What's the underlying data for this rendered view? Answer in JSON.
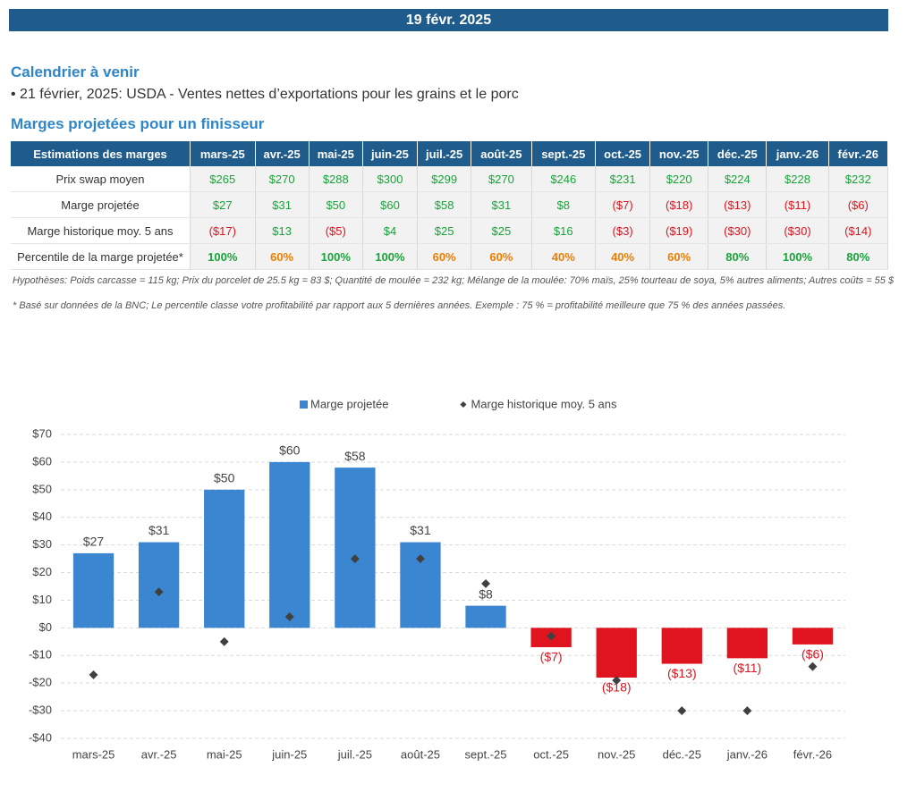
{
  "header": {
    "date": "19 févr. 2025"
  },
  "calendar": {
    "title": "Calendrier à venir",
    "items": [
      "• 21 février, 2025: USDA - Ventes nettes d’exportations pour les grains et le porc"
    ]
  },
  "margins": {
    "title": "Marges projetées pour un finisseur",
    "table": {
      "header": [
        "Estimations des marges",
        "mars-25",
        "avr.-25",
        "mai-25",
        "juin-25",
        "juil.-25",
        "août-25",
        "sept.-25",
        "oct.-25",
        "nov.-25",
        "déc.-25",
        "janv.-26",
        "févr.-26"
      ],
      "rows": [
        {
          "label": "Prix swap moyen",
          "cells": [
            "$265",
            "$270",
            "$288",
            "$300",
            "$299",
            "$270",
            "$246",
            "$231",
            "$220",
            "$224",
            "$228",
            "$232"
          ],
          "colors": [
            "#1aa33a",
            "#1aa33a",
            "#1aa33a",
            "#1aa33a",
            "#1aa33a",
            "#1aa33a",
            "#1aa33a",
            "#1aa33a",
            "#1aa33a",
            "#1aa33a",
            "#1aa33a",
            "#1aa33a"
          ]
        },
        {
          "label": "Marge projetée",
          "cells": [
            "$27",
            "$31",
            "$50",
            "$60",
            "$58",
            "$31",
            "$8",
            "($7)",
            "($18)",
            "($13)",
            "($11)",
            "($6)"
          ],
          "colors": [
            "#1aa33a",
            "#1aa33a",
            "#1aa33a",
            "#1aa33a",
            "#1aa33a",
            "#1aa33a",
            "#1aa33a",
            "#e0141e",
            "#e0141e",
            "#e0141e",
            "#e0141e",
            "#e0141e"
          ]
        },
        {
          "label": "Marge historique moy. 5 ans",
          "cells": [
            "($17)",
            "$13",
            "($5)",
            "$4",
            "$25",
            "$25",
            "$16",
            "($3)",
            "($19)",
            "($30)",
            "($30)",
            "($14)"
          ],
          "colors": [
            "#e0141e",
            "#1aa33a",
            "#e0141e",
            "#1aa33a",
            "#1aa33a",
            "#1aa33a",
            "#1aa33a",
            "#e0141e",
            "#e0141e",
            "#e0141e",
            "#e0141e",
            "#e0141e"
          ]
        },
        {
          "label": "Percentile de la marge projetée*",
          "cells": [
            "100%",
            "60%",
            "100%",
            "100%",
            "60%",
            "60%",
            "40%",
            "40%",
            "60%",
            "80%",
            "100%",
            "80%"
          ],
          "colors": [
            "#1aa33a",
            "#f07d00",
            "#1aa33a",
            "#1aa33a",
            "#f07d00",
            "#f07d00",
            "#f07d00",
            "#f07d00",
            "#f07d00",
            "#1aa33a",
            "#1aa33a",
            "#1aa33a"
          ]
        }
      ]
    }
  },
  "notes": [
    "Hypothèses: Poids carcasse = 115 kg; Prix du porcelet de 25.5 kg = 83 $; Quantité de moulée = 232 kg; Mélange de la moulée: 70% maïs, 25% tourteau de soya, 5% autres aliments; Autres coûts = 55 $",
    "* Basé sur données de la BNC; Le percentile classe votre profitabilité par rapport aux 5 dernières années. Exemple : 75 % = profitabilité meilleure que 75 % des années passées."
  ],
  "chart_data": {
    "type": "bar",
    "categories": [
      "mars-25",
      "avr.-25",
      "mai-25",
      "juin-25",
      "juil.-25",
      "août-25",
      "sept.-25",
      "oct.-25",
      "nov.-25",
      "déc.-25",
      "janv.-26",
      "févr.-26"
    ],
    "series": [
      {
        "name": "Marge projetée",
        "type": "bar",
        "color": "#3b86d1",
        "negative_color": "#e0141e",
        "values": [
          27,
          31,
          50,
          60,
          58,
          31,
          8,
          -7,
          -18,
          -13,
          -11,
          -6
        ],
        "value_labels": [
          "$27",
          "$31",
          "$50",
          "$60",
          "$58",
          "$31",
          "$8",
          "($7)",
          "($18)",
          "($13)",
          "($11)",
          "($6)"
        ]
      },
      {
        "name": "Marge historique moy. 5 ans",
        "type": "scatter",
        "color": "#404040",
        "values": [
          -17,
          13,
          -5,
          4,
          25,
          25,
          16,
          -3,
          -19,
          -30,
          -30,
          -14
        ]
      }
    ],
    "ylim": [
      -40,
      70
    ],
    "yticks": [
      {
        "value": -40,
        "label": "-$40"
      },
      {
        "value": -30,
        "label": "-$30"
      },
      {
        "value": -20,
        "label": "-$20"
      },
      {
        "value": -10,
        "label": "-$10"
      },
      {
        "value": 0,
        "label": "$0"
      },
      {
        "value": 10,
        "label": "$10"
      },
      {
        "value": 20,
        "label": "$20"
      },
      {
        "value": 30,
        "label": "$30"
      },
      {
        "value": 40,
        "label": "$40"
      },
      {
        "value": 50,
        "label": "$50"
      },
      {
        "value": 60,
        "label": "$60"
      },
      {
        "value": 70,
        "label": "$70"
      }
    ],
    "grid": true,
    "legend": "top"
  }
}
